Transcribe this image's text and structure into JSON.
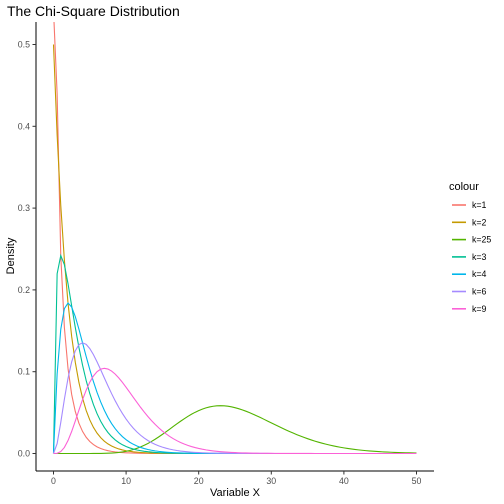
{
  "chart_data": {
    "type": "line",
    "title": "The Chi-Square Distribution",
    "xlabel": "Variable X",
    "ylabel": "Density",
    "xlim": [
      0,
      50
    ],
    "ylim": [
      0,
      0.52
    ],
    "x_ticks": [
      0,
      10,
      20,
      30,
      40,
      50
    ],
    "y_ticks": [
      0.0,
      0.1,
      0.2,
      0.3,
      0.4,
      0.5
    ],
    "x_tick_labels": [
      "0",
      "10",
      "20",
      "30",
      "40",
      "50"
    ],
    "y_tick_labels": [
      "0.0",
      "0.1",
      "0.2",
      "0.3",
      "0.4",
      "0.5"
    ],
    "grid": false,
    "legend": {
      "title": "colour",
      "placement": "right"
    },
    "series": [
      {
        "name": "k=1",
        "df": 1,
        "color": "#F8766D"
      },
      {
        "name": "k=2",
        "df": 2,
        "color": "#C49A00"
      },
      {
        "name": "k=25",
        "df": 25,
        "color": "#53B400"
      },
      {
        "name": "k=3",
        "df": 3,
        "color": "#00C094"
      },
      {
        "name": "k=4",
        "df": 4,
        "color": "#00B6EB"
      },
      {
        "name": "k=6",
        "df": 6,
        "color": "#A58AFF"
      },
      {
        "name": "k=9",
        "df": 9,
        "color": "#FB61D7"
      }
    ]
  }
}
